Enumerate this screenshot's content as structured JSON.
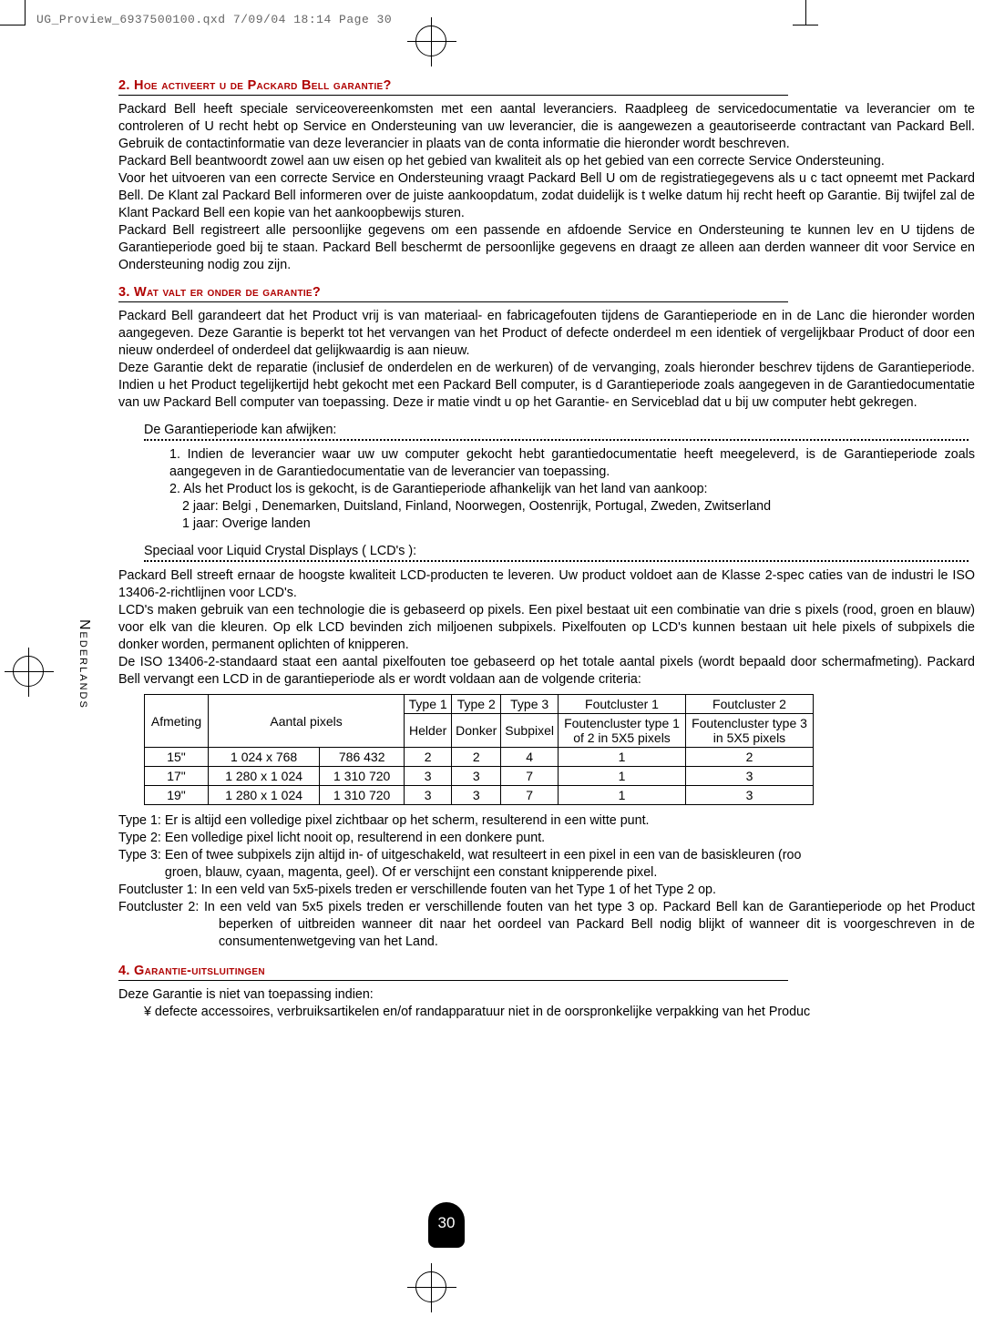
{
  "header_info": "UG_Proview_6937500100.qxd  7/09/04  18:14  Page 30",
  "side_label": "Nederlands",
  "page_number": "30",
  "section2": {
    "num": "2.",
    "title": "Hoe activeert u de Packard Bell garantie?",
    "p1": "Packard Bell heeft speciale serviceovereenkomsten met een aantal leveranciers. Raadpleeg de servicedocumentatie va leverancier om te controleren of U recht hebt op Service en Ondersteuning van uw leverancier, die is aangewezen a geautoriseerde contractant van Packard Bell. Gebruik de contactinformatie van deze leverancier in plaats van de conta informatie die hieronder wordt beschreven.",
    "p2": "Packard Bell beantwoordt zowel aan uw eisen op het gebied van kwaliteit als op het gebied van een correcte Service Ondersteuning.",
    "p3": "Voor het uitvoeren van een correcte Service en Ondersteuning vraagt Packard Bell U om de registratiegegevens als u c tact opneemt met Packard Bell. De Klant zal Packard Bell informeren over de juiste aankoopdatum, zodat duidelijk is t welke datum hij recht heeft op Garantie. Bij twijfel zal de Klant Packard Bell een kopie van het aankoopbewijs sturen.",
    "p4": "Packard Bell registreert alle persoonlijke gegevens om een passende en afdoende Service en Ondersteuning te kunnen lev en U tijdens de Garantieperiode goed bij te staan. Packard Bell beschermt de persoonlijke gegevens en draagt ze alleen aan derden wanneer dit voor Service en Ondersteuning nodig zou zijn."
  },
  "section3": {
    "num": "3.",
    "title": "Wat valt er onder de garantie?",
    "p1": "Packard Bell garandeert dat het Product vrij is van materiaal- en fabricagefouten tijdens de Garantieperiode en in de Lanc die hieronder worden aangegeven. Deze Garantie is beperkt tot het vervangen van het Product of defecte onderdeel m een identiek of vergelijkbaar Product of door een nieuw onderdeel of onderdeel dat gelijkwaardig is aan nieuw.",
    "p2": "Deze Garantie dekt de reparatie (inclusief de onderdelen en de werkuren) of de vervanging, zoals hieronder beschrev tijdens de Garantieperiode. Indien u het Product tegelijkertijd hebt gekocht met een Packard Bell computer, is d Garantieperiode zoals aangegeven in de Garantiedocumentatie van uw Packard Bell computer van toepassing. Deze ir matie vindt u op het Garantie- en Serviceblad dat u bij uw computer hebt gekregen.",
    "dh1": "De Garantieperiode kan afwijken:",
    "li1": "1. Indien de leverancier waar uw uw computer gekocht hebt garantiedocumentatie heeft meegeleverd, is de Garantieperiode zoals aangegeven in de Garantiedocumentatie van de leverancier van toepassing.",
    "li2": "2. Als het Product los is gekocht, is de Garantieperiode afhankelijk van het land van aankoop:",
    "li2a": "2 jaar: Belgi , Denemarken, Duitsland, Finland, Noorwegen, Oostenrijk, Portugal, Zweden, Zwitserland",
    "li2b": "1 jaar: Overige landen",
    "dh2": "Speciaal voor Liquid Crystal Displays ( LCD's ):",
    "lcd1": "Packard Bell streeft ernaar de hoogste kwaliteit LCD-producten te leveren. Uw product voldoet aan de Klasse 2-spec caties van de industri le ISO 13406-2-richtlijnen voor LCD's.",
    "lcd2": "LCD's maken gebruik van een technologie die is gebaseerd op pixels. Een pixel bestaat uit een combinatie van drie s pixels (rood, groen en blauw) voor elk van die kleuren. Op elk LCD bevinden zich miljoenen subpixels. Pixelfouten op LCD's kunnen bestaan uit hele pixels of subpixels die donker worden, permanent oplichten of knipperen.",
    "lcd3": "De ISO 13406-2-standaard staat een aantal pixelfouten toe gebaseerd op het totale aantal pixels (wordt bepaald door schermafmeting). Packard Bell vervangt een LCD in de garantieperiode als er wordt voldaan aan de volgende criteria:"
  },
  "table": {
    "h_size": "Afmeting",
    "h_pixels": "Aantal pixels",
    "h_t1": "Type 1",
    "h_t2": "Type 2",
    "h_t3": "Type 3",
    "h_fc1": "Foutcluster 1",
    "h_fc2": "Foutcluster 2",
    "sub_t1": "Helder",
    "sub_t2": "Donker",
    "sub_t3": "Subpixel",
    "sub_fc1": "Foutencluster type 1 of 2 in 5X5 pixels",
    "sub_fc2": "Foutencluster type 3 in 5X5 pixels",
    "rows": [
      {
        "size": "15\"",
        "res": "1 024 x 768",
        "px": "786 432",
        "t1": "2",
        "t2": "2",
        "t3": "4",
        "fc1": "1",
        "fc2": "2"
      },
      {
        "size": "17\"",
        "res": "1 280 x 1 024",
        "px": "1 310 720",
        "t1": "3",
        "t2": "3",
        "t3": "7",
        "fc1": "1",
        "fc2": "3"
      },
      {
        "size": "19\"",
        "res": "1 280 x 1 024",
        "px": "1 310 720",
        "t1": "3",
        "t2": "3",
        "t3": "7",
        "fc1": "1",
        "fc2": "3"
      }
    ]
  },
  "defs": {
    "t1": "Type 1: Er is altijd een volledige pixel zichtbaar op het scherm, resulterend in een witte punt.",
    "t2": "Type 2: Een volledige pixel licht nooit op, resulterend in een donkere punt.",
    "t3a": "Type 3: Een of twee subpixels zijn altijd in- of uitgeschakeld, wat resulteert in een pixel in een van de basiskleuren (roo",
    "t3b": "groen, blauw, cyaan, magenta, geel). Of er verschijnt een constant knipperende pixel.",
    "fc1": "Foutcluster 1: In een veld van 5x5-pixels treden er verschillende fouten van het Type 1 of het Type 2 op.",
    "fc2": "Foutcluster 2: In een veld van 5x5 pixels treden er verschillende fouten van het type 3 op. Packard Bell kan de Garantieperiode op het Product beperken of uitbreiden wanneer dit naar het oordeel van Packard Bell nodig blijkt of wanneer dit is voorgeschreven in de consumentenwetgeving van het Land."
  },
  "section4": {
    "num": "4.",
    "title": "Garantie-uitsluitingen",
    "p1": "Deze Garantie is niet van toepassing indien:",
    "li1": "¥ defecte accessoires, verbruiksartikelen en/of randapparatuur niet in de oorspronkelijke verpakking van het Produc"
  }
}
